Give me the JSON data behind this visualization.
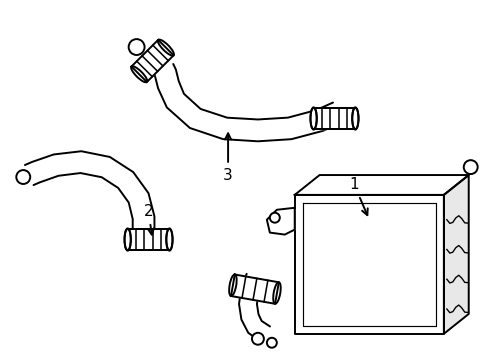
{
  "background_color": "#ffffff",
  "line_color": "#000000",
  "line_width": 1.4,
  "label_1": "1",
  "label_2": "2",
  "label_3": "3",
  "figsize": [
    4.89,
    3.6
  ],
  "dpi": 100
}
